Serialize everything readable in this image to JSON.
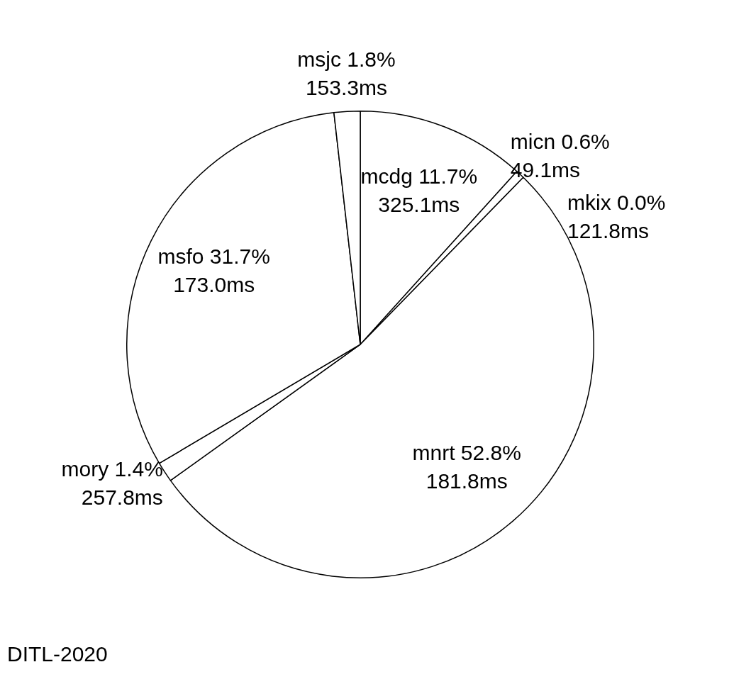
{
  "chart_data": {
    "type": "pie",
    "categories": [
      "mcdg",
      "micn",
      "mkix",
      "mnrt",
      "mory",
      "msfo",
      "msjc"
    ],
    "values": [
      11.7,
      0.6,
      0.0,
      52.8,
      1.4,
      31.7,
      1.8
    ],
    "colors": [
      "#ffffff",
      "#ffffff",
      "#ffffff",
      "#ffffff",
      "#ffffff",
      "#ffffff",
      "#ffffff"
    ],
    "value_labels": [
      "11.7%\n325.1ms",
      "0.6%\n49.1ms",
      "0.0%\n121.8ms",
      "52.8%\n181.8ms",
      "1.4%\n257.8ms",
      "31.7%\n173.0ms",
      "1.8%\n153.3ms"
    ],
    "annotations": [
      "DITL-2020"
    ],
    "legend": false
  }
}
